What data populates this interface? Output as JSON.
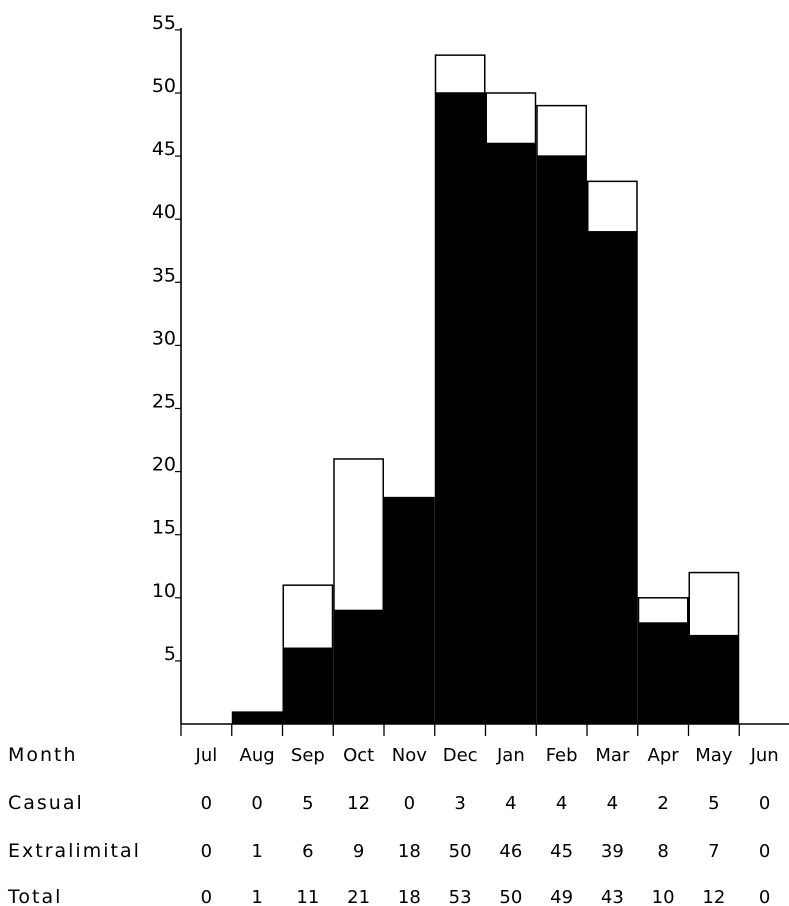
{
  "chart_data": {
    "type": "bar",
    "stacked": true,
    "categories": [
      "Jul",
      "Aug",
      "Sep",
      "Oct",
      "Nov",
      "Dec",
      "Jan",
      "Feb",
      "Mar",
      "Apr",
      "May",
      "Jun"
    ],
    "series": [
      {
        "name": "Extralimital",
        "color": "#000000",
        "values": [
          0,
          1,
          6,
          9,
          18,
          50,
          46,
          45,
          39,
          8,
          7,
          0
        ]
      },
      {
        "name": "Casual",
        "color": "#ffffff",
        "values": [
          0,
          0,
          5,
          12,
          0,
          3,
          4,
          4,
          4,
          2,
          5,
          0
        ]
      }
    ],
    "totals": [
      0,
      1,
      11,
      21,
      18,
      53,
      50,
      49,
      43,
      10,
      12,
      0
    ],
    "yticks": [
      "5",
      "10",
      "15",
      "20",
      "25",
      "30",
      "35",
      "40",
      "45",
      "50",
      "55"
    ],
    "ylim": [
      0,
      55
    ],
    "grid": false,
    "table": {
      "row_labels": {
        "month": "Month",
        "casual": "Casual",
        "extralimital": "Extralimital",
        "total": "Total"
      }
    }
  }
}
